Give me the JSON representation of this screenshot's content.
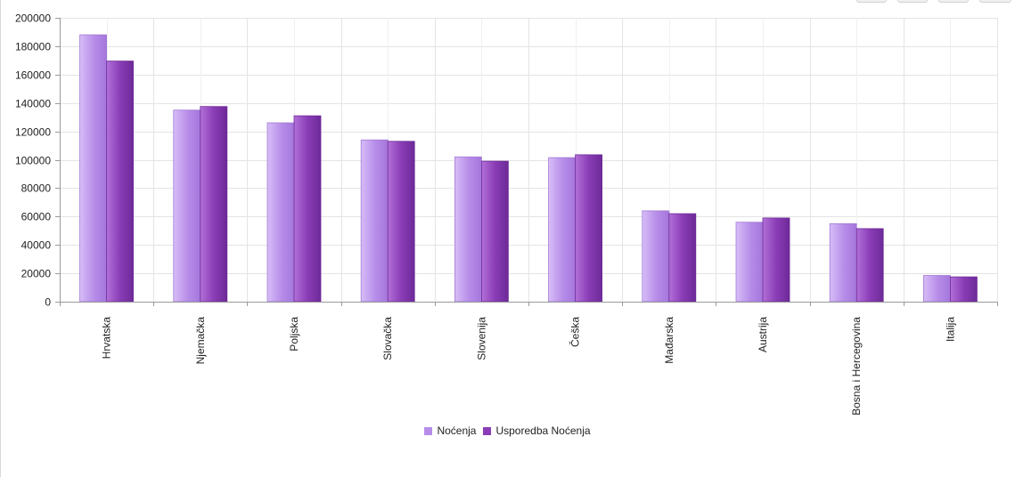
{
  "chart_data": {
    "type": "bar",
    "categories": [
      "Hrvatska",
      "Njemačka",
      "Poljska",
      "Slovačka",
      "Slovenija",
      "Češka",
      "Mađarska",
      "Austrija",
      "Bosna i Hercegovina",
      "Italija"
    ],
    "series": [
      {
        "name": "Noćenja",
        "color": "#b68ce8",
        "values": [
          188000,
          135000,
          126000,
          114000,
          102000,
          101500,
          64000,
          56000,
          55000,
          18500
        ]
      },
      {
        "name": "Usporedba Noćenja",
        "color": "#8a3db6",
        "values": [
          169500,
          137500,
          131000,
          113000,
          99000,
          103500,
          62000,
          59000,
          51500,
          17500
        ]
      }
    ],
    "yticks": [
      "0",
      "20000",
      "40000",
      "60000",
      "80000",
      "100000",
      "120000",
      "140000",
      "160000",
      "180000",
      "200000"
    ],
    "ylim": [
      0,
      200000
    ],
    "grid": true,
    "legend_position": "bottom-center"
  },
  "legend": {
    "item_0": "Noćenja",
    "item_1": "Usporedba Noćenja"
  }
}
